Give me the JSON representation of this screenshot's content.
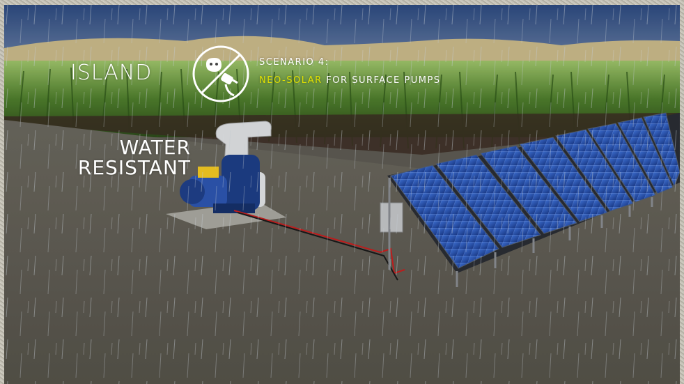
{
  "overlay": {
    "mode_label": "ISLAND",
    "scenario_label": "SCENARIO 4:",
    "product_name": "NEO-SOLAR",
    "scenario_desc": " FOR SURFACE PUMPS",
    "feature_line1": "WATER",
    "feature_line2": "RESISTANT"
  },
  "icons": {
    "mode_icon": "no-grid-plug-icon"
  },
  "colors": {
    "accent": "#e0e000",
    "text": "#ffffff",
    "sky": "#3a5688",
    "panel": "#2a56b8",
    "cable": "#c81e1e"
  }
}
